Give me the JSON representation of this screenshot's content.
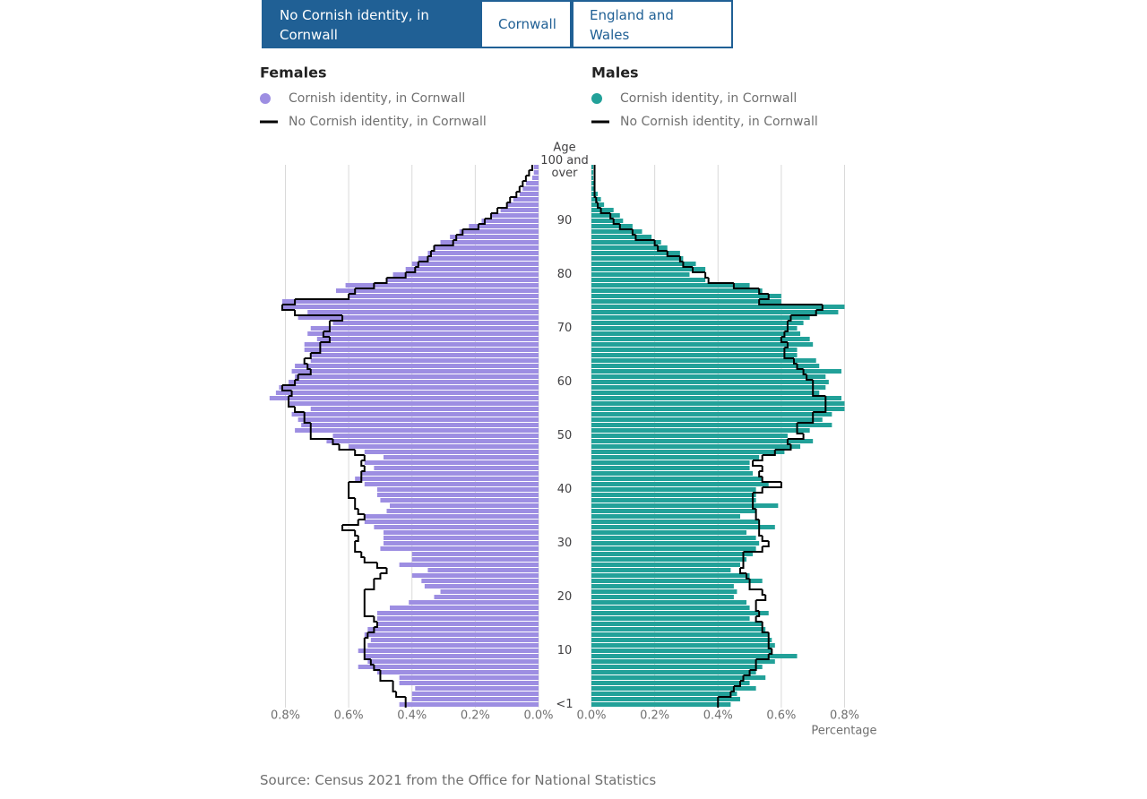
{
  "tabs": {
    "options": [
      "No Cornish identity, in Cornwall",
      "Cornwall",
      "England and Wales"
    ],
    "selected": 0
  },
  "chart_data": {
    "type": "pyramid",
    "y_label": "Age",
    "x_label": "Percentage",
    "categories": [
      "<1",
      null,
      null,
      null,
      null,
      null,
      null,
      null,
      null,
      null,
      "10",
      null,
      null,
      null,
      null,
      null,
      null,
      null,
      null,
      null,
      "20",
      null,
      null,
      null,
      null,
      null,
      null,
      null,
      null,
      null,
      "30",
      null,
      null,
      null,
      null,
      null,
      null,
      null,
      null,
      null,
      "40",
      null,
      null,
      null,
      null,
      null,
      null,
      null,
      null,
      null,
      "50",
      null,
      null,
      null,
      null,
      null,
      null,
      null,
      null,
      null,
      "60",
      null,
      null,
      null,
      null,
      null,
      null,
      null,
      null,
      null,
      "70",
      null,
      null,
      null,
      null,
      null,
      null,
      null,
      null,
      null,
      "80",
      null,
      null,
      null,
      null,
      null,
      null,
      null,
      null,
      null,
      "90",
      null,
      null,
      null,
      null,
      null,
      null,
      null,
      null,
      null,
      "100 and over"
    ],
    "panels": [
      {
        "title": "Females",
        "x_reversed": true,
        "xlim": [
          0,
          0.8
        ],
        "xticks": [
          {
            "value": 0,
            "label": "0.0%"
          },
          {
            "value": 0.2,
            "label": "0.2%"
          },
          {
            "value": 0.4,
            "label": "0.4%"
          },
          {
            "value": 0.6,
            "label": "0.6%"
          },
          {
            "value": 0.8,
            "label": "0.8%"
          }
        ],
        "series": [
          {
            "name": "Cornish identity, in Cornwall",
            "color": "#9d8ee2",
            "style": "bar",
            "values": [
              0.44,
              0.4,
              0.4,
              0.39,
              0.44,
              0.44,
              0.51,
              0.57,
              0.54,
              0.55,
              0.57,
              0.54,
              0.53,
              0.55,
              0.54,
              0.51,
              0.51,
              0.51,
              0.47,
              0.41,
              0.33,
              0.31,
              0.36,
              0.37,
              0.4,
              0.35,
              0.44,
              0.4,
              0.4,
              0.5,
              0.49,
              0.49,
              0.49,
              0.52,
              0.55,
              0.55,
              0.48,
              0.47,
              0.5,
              0.51,
              0.51,
              0.55,
              0.58,
              0.56,
              0.52,
              0.55,
              0.49,
              0.55,
              0.6,
              0.67,
              0.65,
              0.77,
              0.75,
              0.76,
              0.78,
              0.72,
              0.79,
              0.85,
              0.83,
              0.82,
              0.79,
              0.77,
              0.78,
              0.77,
              0.72,
              0.72,
              0.74,
              0.74,
              0.7,
              0.73,
              0.72,
              0.65,
              0.76,
              0.73,
              0.81,
              0.81,
              0.6,
              0.64,
              0.61,
              0.48,
              0.46,
              0.42,
              0.4,
              0.38,
              0.35,
              0.33,
              0.31,
              0.28,
              0.25,
              0.22,
              0.18,
              0.15,
              0.12,
              0.1,
              0.08,
              0.06,
              0.05,
              0.04,
              0.02,
              0.015,
              0.015
            ]
          },
          {
            "name": "No Cornish identity, in Cornwall",
            "color": "#000000",
            "style": "step",
            "values": [
              0.42,
              0.42,
              0.45,
              0.46,
              0.46,
              0.5,
              0.5,
              0.52,
              0.53,
              0.55,
              0.55,
              0.55,
              0.55,
              0.54,
              0.52,
              0.51,
              0.52,
              0.55,
              0.55,
              0.55,
              0.55,
              0.55,
              0.52,
              0.52,
              0.5,
              0.48,
              0.51,
              0.55,
              0.56,
              0.58,
              0.58,
              0.57,
              0.58,
              0.62,
              0.57,
              0.55,
              0.57,
              0.58,
              0.58,
              0.6,
              0.6,
              0.6,
              0.56,
              0.56,
              0.55,
              0.56,
              0.55,
              0.58,
              0.63,
              0.65,
              0.72,
              0.72,
              0.72,
              0.74,
              0.74,
              0.77,
              0.79,
              0.79,
              0.78,
              0.81,
              0.77,
              0.76,
              0.72,
              0.73,
              0.74,
              0.72,
              0.69,
              0.69,
              0.66,
              0.68,
              0.66,
              0.66,
              0.62,
              0.77,
              0.81,
              0.77,
              0.6,
              0.58,
              0.52,
              0.48,
              0.42,
              0.39,
              0.38,
              0.35,
              0.34,
              0.33,
              0.27,
              0.26,
              0.24,
              0.19,
              0.17,
              0.15,
              0.13,
              0.1,
              0.09,
              0.07,
              0.06,
              0.05,
              0.04,
              0.03,
              0.02
            ]
          }
        ]
      },
      {
        "title": "Males",
        "x_reversed": false,
        "xlim": [
          0,
          0.8
        ],
        "xticks": [
          {
            "value": 0,
            "label": "0.0%"
          },
          {
            "value": 0.2,
            "label": "0.2%"
          },
          {
            "value": 0.4,
            "label": "0.4%"
          },
          {
            "value": 0.6,
            "label": "0.6%"
          },
          {
            "value": 0.8,
            "label": "0.8%"
          }
        ],
        "series": [
          {
            "name": "Cornish identity, in Cornwall",
            "color": "#22a199",
            "style": "bar",
            "values": [
              0.44,
              0.47,
              0.46,
              0.52,
              0.5,
              0.55,
              0.52,
              0.54,
              0.58,
              0.65,
              0.57,
              0.58,
              0.57,
              0.56,
              0.55,
              0.54,
              0.5,
              0.56,
              0.5,
              0.49,
              0.45,
              0.46,
              0.45,
              0.54,
              0.5,
              0.44,
              0.47,
              0.49,
              0.51,
              0.52,
              0.53,
              0.52,
              0.49,
              0.58,
              0.53,
              0.47,
              0.52,
              0.59,
              0.52,
              0.52,
              0.52,
              0.56,
              0.54,
              0.51,
              0.5,
              0.5,
              0.53,
              0.61,
              0.66,
              0.7,
              0.62,
              0.69,
              0.76,
              0.73,
              0.76,
              0.8,
              0.8,
              0.79,
              0.72,
              0.74,
              0.75,
              0.74,
              0.79,
              0.72,
              0.71,
              0.65,
              0.65,
              0.7,
              0.69,
              0.66,
              0.65,
              0.67,
              0.69,
              0.78,
              0.8,
              0.6,
              0.6,
              0.54,
              0.5,
              0.36,
              0.31,
              0.36,
              0.33,
              0.29,
              0.28,
              0.24,
              0.22,
              0.19,
              0.16,
              0.13,
              0.1,
              0.09,
              0.07,
              0.04,
              0.03,
              0.02,
              0.01,
              0.01,
              0.006,
              0.006,
              0.006
            ]
          },
          {
            "name": "No Cornish identity, in Cornwall",
            "color": "#000000",
            "style": "step",
            "values": [
              0.4,
              0.4,
              0.44,
              0.45,
              0.47,
              0.48,
              0.5,
              0.52,
              0.52,
              0.56,
              0.57,
              0.56,
              0.56,
              0.56,
              0.54,
              0.54,
              0.52,
              0.53,
              0.52,
              0.52,
              0.55,
              0.54,
              0.5,
              0.5,
              0.49,
              0.47,
              0.48,
              0.48,
              0.48,
              0.54,
              0.56,
              0.54,
              0.53,
              0.53,
              0.53,
              0.52,
              0.52,
              0.51,
              0.51,
              0.51,
              0.54,
              0.6,
              0.54,
              0.53,
              0.54,
              0.51,
              0.54,
              0.58,
              0.63,
              0.62,
              0.67,
              0.65,
              0.65,
              0.7,
              0.7,
              0.74,
              0.74,
              0.74,
              0.7,
              0.7,
              0.7,
              0.68,
              0.67,
              0.65,
              0.64,
              0.61,
              0.61,
              0.62,
              0.6,
              0.61,
              0.62,
              0.62,
              0.63,
              0.71,
              0.73,
              0.53,
              0.56,
              0.53,
              0.45,
              0.37,
              0.36,
              0.32,
              0.29,
              0.28,
              0.24,
              0.21,
              0.2,
              0.14,
              0.13,
              0.09,
              0.07,
              0.06,
              0.03,
              0.02,
              0.015,
              0.01,
              0.01,
              0.01,
              0.01,
              0.01,
              0.01
            ]
          }
        ]
      }
    ]
  },
  "source": "Source: Census 2021 from the Office for National Statistics"
}
